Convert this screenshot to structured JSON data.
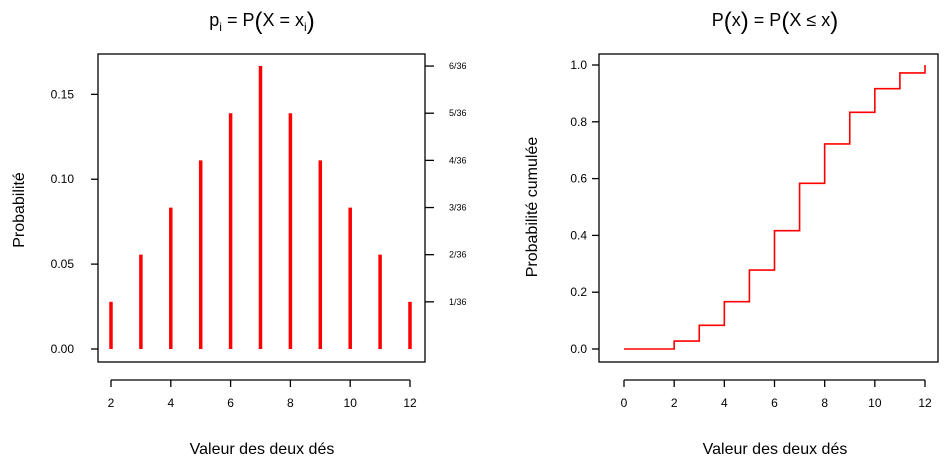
{
  "chart_data": [
    {
      "type": "bar",
      "title": {
        "p": "p",
        "sub_i": "i",
        "eq": " = P",
        "inner": "X = x",
        "inner_sub": "i"
      },
      "xlabel": "Valeur des deux dés",
      "ylabel": "Probabilité",
      "categories": [
        2,
        3,
        4,
        5,
        6,
        7,
        8,
        9,
        10,
        11,
        12
      ],
      "values": [
        0.0278,
        0.0556,
        0.0833,
        0.1111,
        0.1389,
        0.1667,
        0.1389,
        0.1111,
        0.0833,
        0.0556,
        0.0278
      ],
      "xlim": [
        2,
        12
      ],
      "ylim": [
        0,
        0.1667
      ],
      "xticks": [
        2,
        4,
        6,
        8,
        10,
        12
      ],
      "yticks": [
        0.0,
        0.05,
        0.1,
        0.15
      ],
      "ytick_labels": [
        "0.00",
        "0.05",
        "0.10",
        "0.15"
      ],
      "right_axis_ticks": [
        0.02778,
        0.05556,
        0.08333,
        0.11111,
        0.13889,
        0.16667
      ],
      "right_axis_labels": [
        "1/36",
        "2/36",
        "3/36",
        "4/36",
        "5/36",
        "6/36"
      ],
      "color": "#ff0000",
      "grid": false
    },
    {
      "type": "line",
      "title": {
        "left": "P",
        "arg": "x",
        "eq": " = P",
        "inner": "X ≤ x"
      },
      "xlabel": "Valeur des deux dés",
      "ylabel": "Probabilité cumulée",
      "x": [
        0,
        2,
        3,
        4,
        5,
        6,
        7,
        8,
        9,
        10,
        11,
        12
      ],
      "y": [
        0.0,
        0.0278,
        0.0833,
        0.1667,
        0.2778,
        0.4167,
        0.5833,
        0.7222,
        0.8333,
        0.9167,
        0.9722,
        1.0
      ],
      "step": true,
      "xlim": [
        0,
        12
      ],
      "ylim": [
        0,
        1
      ],
      "xticks": [
        0,
        2,
        4,
        6,
        8,
        10,
        12
      ],
      "yticks": [
        0.0,
        0.2,
        0.4,
        0.6,
        0.8,
        1.0
      ],
      "ytick_labels": [
        "0.0",
        "0.2",
        "0.4",
        "0.6",
        "0.8",
        "1.0"
      ],
      "color": "#ff0000",
      "grid": false
    }
  ]
}
